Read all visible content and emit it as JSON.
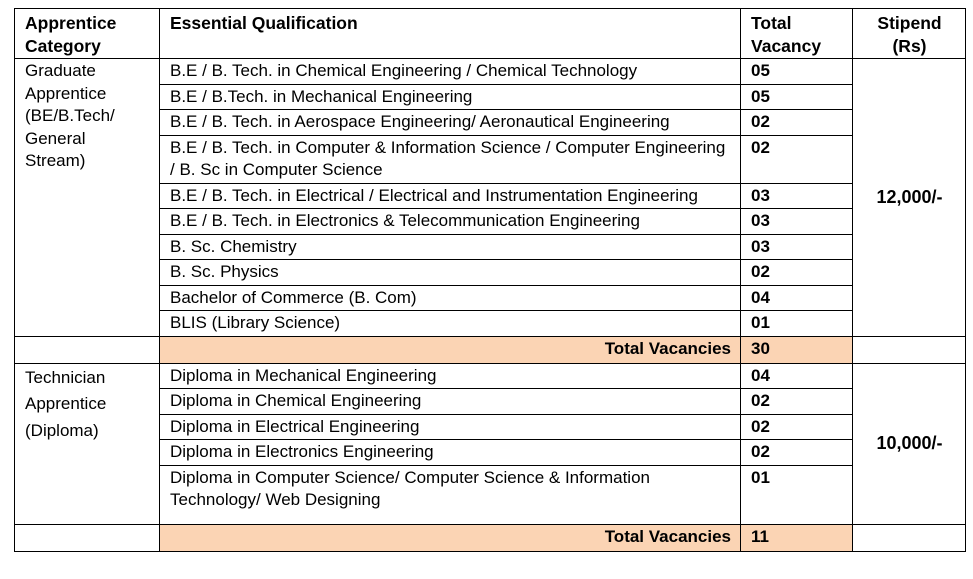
{
  "headers": {
    "category": "Apprentice Category",
    "qualification": "Essential Qualification",
    "vacancy": "Total Vacancy",
    "stipend": "Stipend (Rs)"
  },
  "graduate": {
    "category_lines": [
      "Graduate",
      "Apprentice",
      "(BE/B.Tech/",
      "General Stream)"
    ],
    "stipend": "12,000/-",
    "rows": [
      {
        "qualification": "B.E / B. Tech. in Chemical Engineering / Chemical Technology",
        "vacancy": "05"
      },
      {
        "qualification": "B.E / B.Tech. in Mechanical Engineering",
        "vacancy": "05"
      },
      {
        "qualification": "B.E / B. Tech. in Aerospace Engineering/ Aeronautical Engineering",
        "vacancy": "02"
      },
      {
        "qualification": "B.E / B. Tech. in Computer & Information Science / Computer Engineering / B. Sc in Computer Science",
        "vacancy": "02"
      },
      {
        "qualification": "B.E / B. Tech. in Electrical / Electrical and Instrumentation Engineering",
        "vacancy": "03"
      },
      {
        "qualification": "B.E / B. Tech. in Electronics & Telecommunication Engineering",
        "vacancy": "03"
      },
      {
        "qualification": "B. Sc. Chemistry",
        "vacancy": "03"
      },
      {
        "qualification": "B. Sc. Physics",
        "vacancy": "02"
      },
      {
        "qualification": "Bachelor of Commerce (B. Com)",
        "vacancy": "04"
      },
      {
        "qualification": "BLIS (Library Science)",
        "vacancy": "01"
      }
    ],
    "total_label": "Total Vacancies",
    "total": "30"
  },
  "technician": {
    "category_lines": [
      "Technician",
      "Apprentice",
      "(Diploma)"
    ],
    "stipend": "10,000/-",
    "rows": [
      {
        "qualification": "Diploma in Mechanical Engineering",
        "vacancy": "04"
      },
      {
        "qualification": "Diploma in Chemical Engineering",
        "vacancy": "02"
      },
      {
        "qualification": "Diploma in Electrical Engineering",
        "vacancy": "02"
      },
      {
        "qualification": "Diploma in Electronics Engineering",
        "vacancy": "02"
      },
      {
        "qualification": "Diploma in Computer Science/ Computer Science & Information Technology/ Web Designing",
        "vacancy": "01"
      }
    ],
    "total_label": "Total Vacancies",
    "total": "11"
  }
}
